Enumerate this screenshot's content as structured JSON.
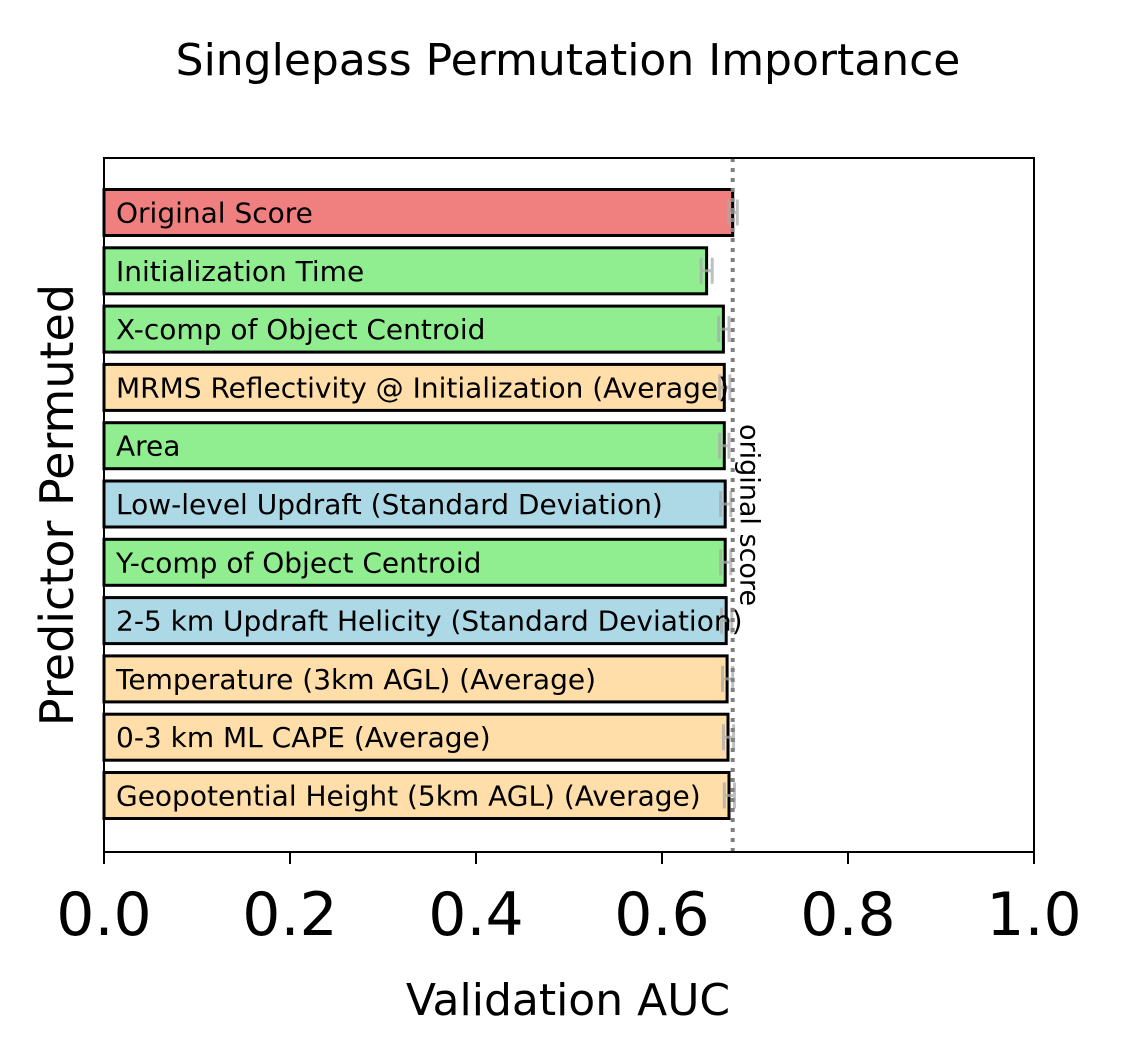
{
  "chart_data": {
    "type": "bar",
    "orientation": "horizontal",
    "title": "Singlepass Permutation Importance",
    "xlabel": "Validation AUC",
    "ylabel": "Predictor Permuted",
    "xlim": [
      0.0,
      1.0
    ],
    "xticks": [
      "0.0",
      "0.2",
      "0.4",
      "0.6",
      "0.8",
      "1.0"
    ],
    "grid": false,
    "legend": "none",
    "reference_line": {
      "value": 0.676,
      "label": "original score",
      "color": "#808080"
    },
    "bars": [
      {
        "label": "Original Score",
        "value": 0.676,
        "err_low": 0.672,
        "err_high": 0.681,
        "color": "#f08080"
      },
      {
        "label": "Initialization Time",
        "value": 0.648,
        "err_low": 0.642,
        "err_high": 0.654,
        "color": "#90ee90"
      },
      {
        "label": "X-comp of Object Centroid",
        "value": 0.666,
        "err_low": 0.661,
        "err_high": 0.672,
        "color": "#90ee90"
      },
      {
        "label": "MRMS Reflectivity @ Initialization (Average)",
        "value": 0.667,
        "err_low": 0.662,
        "err_high": 0.673,
        "color": "#ffdeaa"
      },
      {
        "label": "Area",
        "value": 0.667,
        "err_low": 0.662,
        "err_high": 0.672,
        "color": "#90ee90"
      },
      {
        "label": "Low-level Updraft (Standard Deviation)",
        "value": 0.668,
        "err_low": 0.663,
        "err_high": 0.674,
        "color": "#add8e6"
      },
      {
        "label": "Y-comp of Object Centroid",
        "value": 0.668,
        "err_low": 0.663,
        "err_high": 0.674,
        "color": "#90ee90"
      },
      {
        "label": "2-5 km Updraft Helicity (Standard Deviation)",
        "value": 0.669,
        "err_low": 0.664,
        "err_high": 0.675,
        "color": "#add8e6"
      },
      {
        "label": "Temperature (3km AGL) (Average)",
        "value": 0.67,
        "err_low": 0.665,
        "err_high": 0.676,
        "color": "#ffdeaa"
      },
      {
        "label": "0-3 km ML CAPE (Average)",
        "value": 0.671,
        "err_low": 0.666,
        "err_high": 0.677,
        "color": "#ffdeaa"
      },
      {
        "label": "Geopotential Height (5km AGL) (Average)",
        "value": 0.672,
        "err_low": 0.667,
        "err_high": 0.678,
        "color": "#ffdeaa"
      }
    ]
  }
}
